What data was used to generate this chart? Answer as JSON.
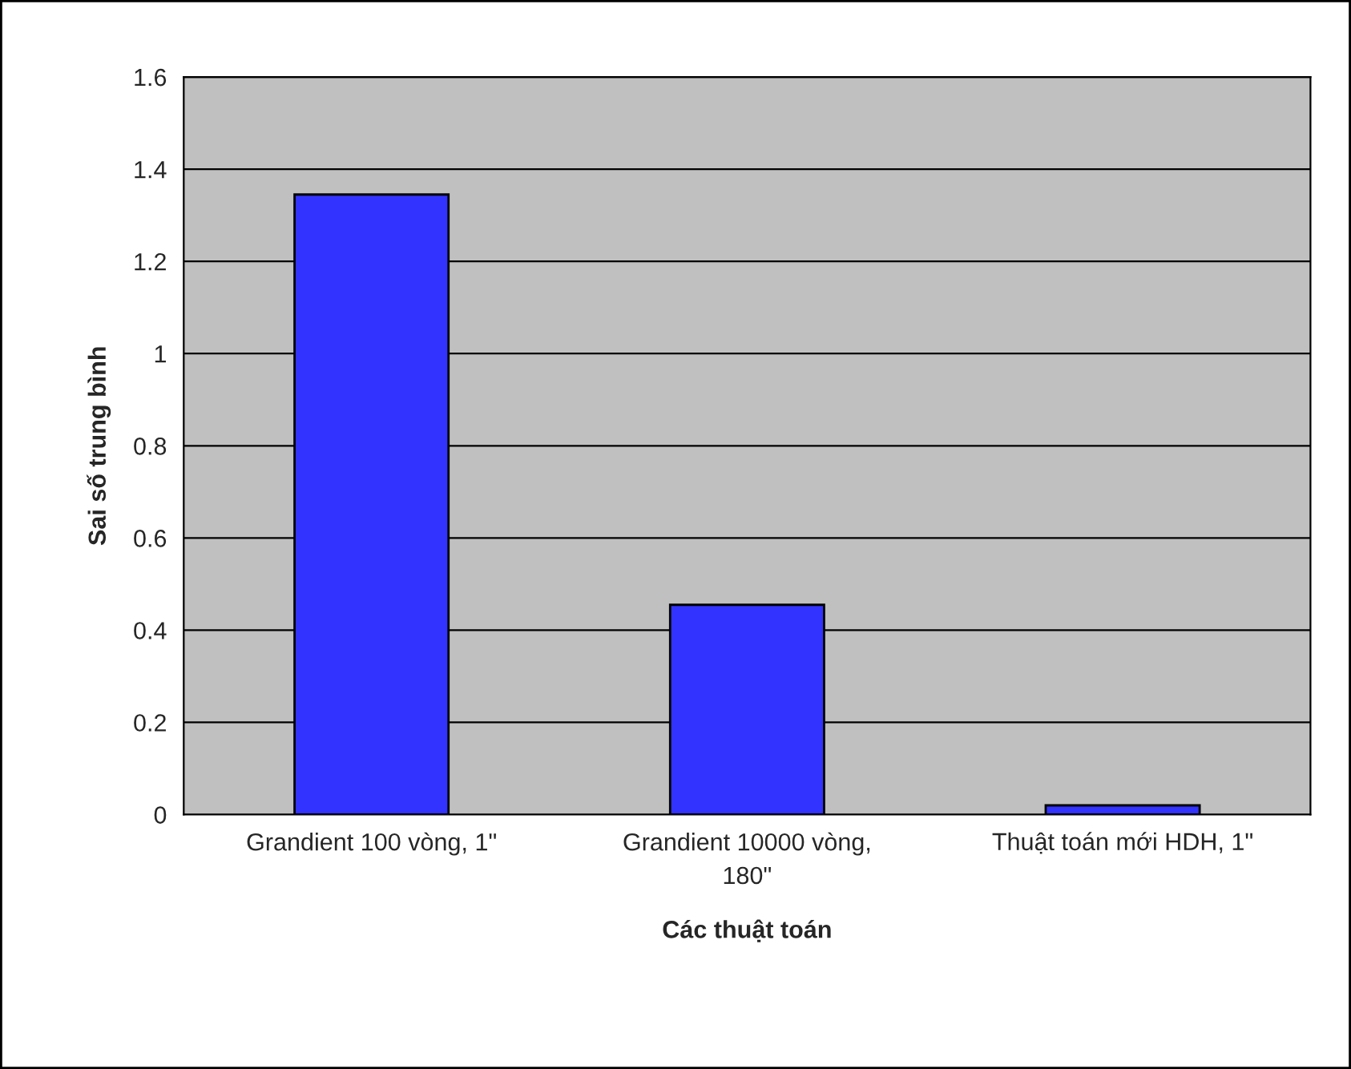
{
  "chart_data": {
    "type": "bar",
    "xlabel": "Các thuật toán",
    "ylabel": "Sai số trung bình",
    "categories": [
      "Grandient 100 vòng, 1\"",
      "Grandient 10000 vòng, 180\"",
      "Thuật toán mới HDH, 1\""
    ],
    "values": [
      1.345,
      0.455,
      0.02
    ],
    "color": "#3333ff",
    "ylim": [
      0,
      1.6
    ],
    "yticks": [
      0,
      0.2,
      0.4,
      0.6,
      0.8,
      1,
      1.2,
      1.4,
      1.6
    ],
    "grid": "y",
    "legend": false
  }
}
